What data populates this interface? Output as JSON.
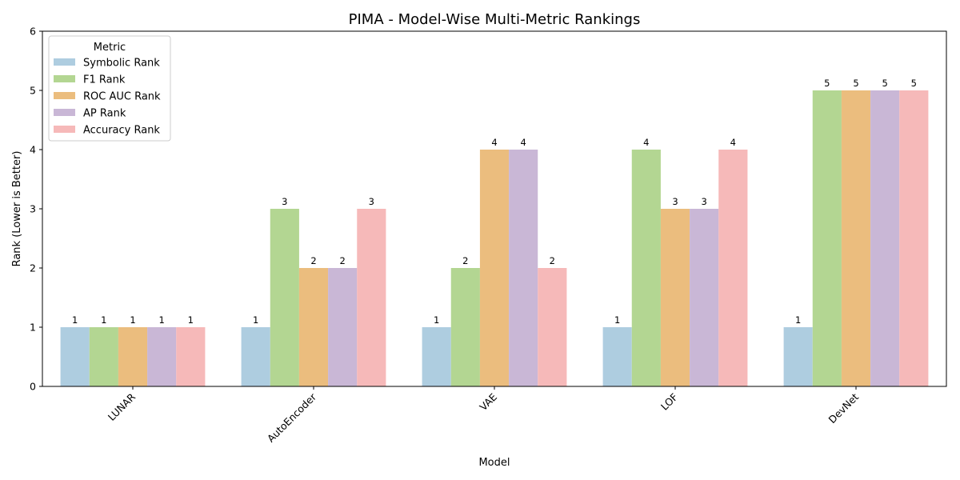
{
  "chart_data": {
    "type": "bar",
    "title": "PIMA - Model-Wise Multi-Metric Rankings",
    "xlabel": "Model",
    "ylabel": "Rank (Lower is Better)",
    "ylim": [
      0,
      6
    ],
    "yticks": [
      "0",
      "1",
      "2",
      "3",
      "4",
      "5",
      "6"
    ],
    "categories": [
      "LUNAR",
      "AutoEncoder",
      "VAE",
      "LOF",
      "DevNet"
    ],
    "legend": {
      "title": "Metric",
      "position": "top-left"
    },
    "grid": false,
    "series": [
      {
        "name": "Symbolic Rank",
        "color": "#aecde0",
        "values": [
          1,
          1,
          1,
          1,
          1
        ]
      },
      {
        "name": "F1 Rank",
        "color": "#b3d692",
        "values": [
          1,
          3,
          2,
          4,
          5
        ]
      },
      {
        "name": "ROC AUC Rank",
        "color": "#ebbd7e",
        "values": [
          1,
          2,
          4,
          3,
          5
        ]
      },
      {
        "name": "AP Rank",
        "color": "#c9b7d6",
        "values": [
          1,
          2,
          4,
          3,
          5
        ]
      },
      {
        "name": "Accuracy Rank",
        "color": "#f6b9b9",
        "values": [
          1,
          3,
          2,
          4,
          5
        ]
      }
    ]
  }
}
